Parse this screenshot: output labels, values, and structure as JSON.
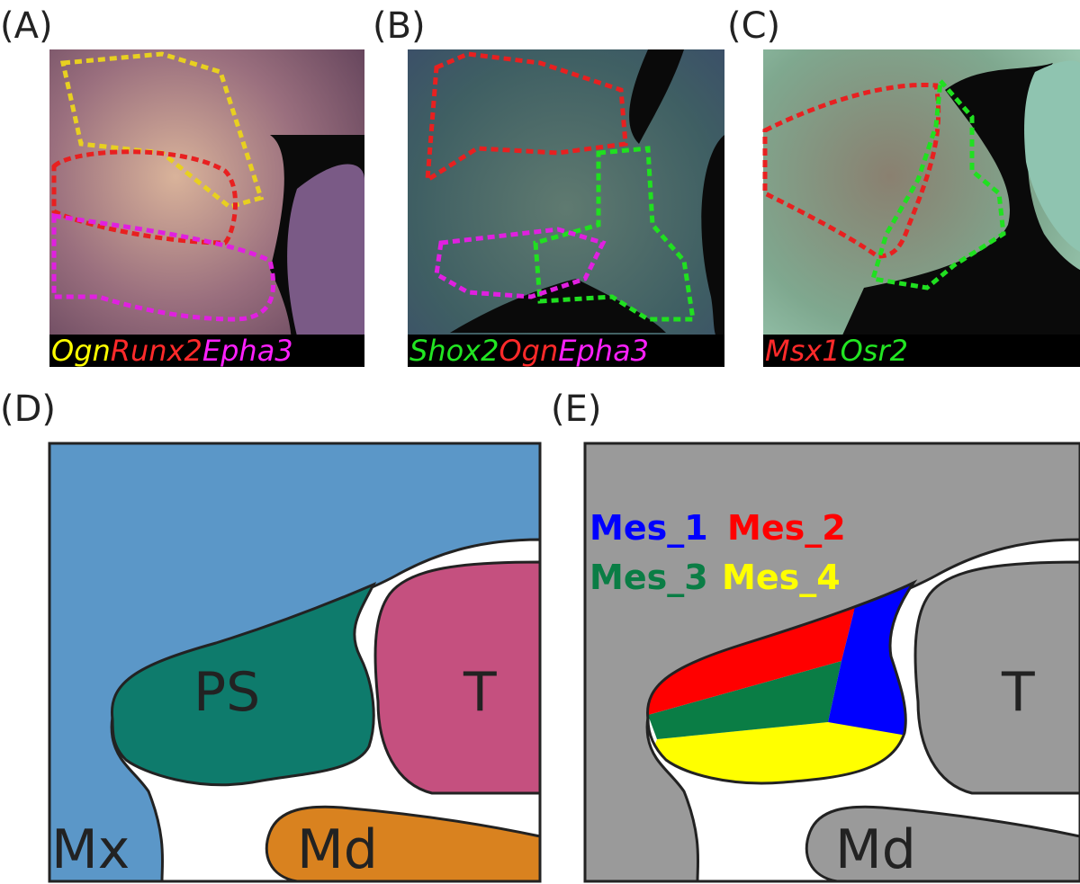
{
  "panels": [
    {
      "label": "(A)",
      "caption": [
        {
          "text": "Ogn",
          "color": "#ffff00"
        },
        {
          "text": "Runx2",
          "color": "#ff2a2a"
        },
        {
          "text": "Epha3",
          "color": "#ff20ff"
        }
      ]
    },
    {
      "label": "(B)",
      "caption": [
        {
          "text": "Shox2",
          "color": "#22e622"
        },
        {
          "text": "Ogn",
          "color": "#ff2a2a"
        },
        {
          "text": "Epha3",
          "color": "#ff20ff"
        }
      ]
    },
    {
      "label": "(C)",
      "caption": [
        {
          "text": "Msx1",
          "color": "#ff2a2a"
        },
        {
          "text": "Osr2",
          "color": "#22e622"
        }
      ]
    }
  ],
  "diagram_d": {
    "label": "(D)",
    "regions": [
      {
        "text": "PS",
        "color": "#0e7b6c"
      },
      {
        "text": "T",
        "color": "#c5507f"
      },
      {
        "text": "Mx",
        "color": "#5b97c8"
      },
      {
        "text": "Md",
        "color": "#d9821f"
      }
    ]
  },
  "diagram_e": {
    "label": "(E)",
    "legend": [
      {
        "text": "Mes_1",
        "color": "#0000ff"
      },
      {
        "text": "Mes_2",
        "color": "#ff0000"
      },
      {
        "text": "Mes_3",
        "color": "#0a7d45"
      },
      {
        "text": "Mes_4",
        "color": "#ffff00"
      }
    ],
    "regions": [
      {
        "text": "T"
      },
      {
        "text": "Md"
      }
    ]
  }
}
